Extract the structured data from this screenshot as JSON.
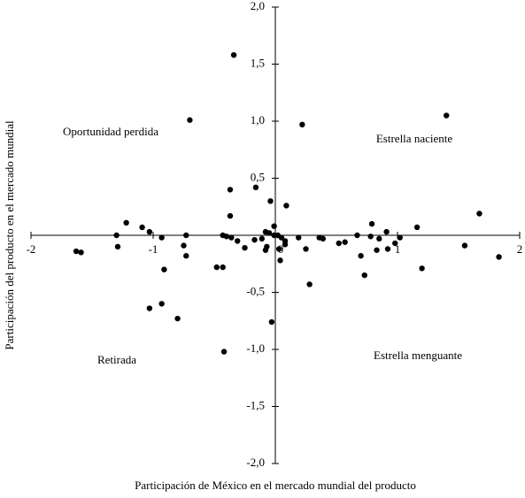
{
  "chart_data": {
    "type": "scatter",
    "x_label": "Participación de México en el mercado mundial del producto",
    "y_label": "Participación del producto en el mercado mundial",
    "annotations": [
      "Oportunidad perdida",
      "Estrella naciente",
      "Retirada",
      "Estrella menguante"
    ],
    "color": "#000000",
    "xlim": [
      -2,
      2
    ],
    "ylim": [
      -2,
      2
    ],
    "xticks": [
      -2,
      -1,
      0,
      1,
      2
    ],
    "yticks": [
      {
        "value": -2,
        "label": "-2,0"
      },
      {
        "value": -1.5,
        "label": "-1,5"
      },
      {
        "value": -1,
        "label": "-1,0"
      },
      {
        "value": -0.5,
        "label": "-0,5"
      },
      {
        "value": 0.5,
        "label": "0,5"
      },
      {
        "value": 1,
        "label": "1,0"
      },
      {
        "value": 1.5,
        "label": "1,5"
      },
      {
        "value": 2,
        "label": "2,0"
      }
    ],
    "x": [
      -0.34,
      -0.7,
      0.22,
      1.4,
      -0.37,
      -0.16,
      -0.04,
      0.09,
      -0.37,
      1.67,
      -1.22,
      -1.09,
      -1.03,
      -1.3,
      -0.73,
      -1.29,
      -1.63,
      -1.59,
      -0.93,
      -0.75,
      -0.73,
      -0.91,
      -0.48,
      -0.43,
      -1.03,
      -0.93,
      -0.8,
      -0.42,
      -0.03,
      0.28,
      0.73,
      0.7,
      1.2,
      1.55,
      1.83,
      1.16,
      0.79,
      0.91,
      1.02,
      0.98,
      0.85,
      0.83,
      0.92,
      0.78,
      0.67,
      0.57,
      0.52,
      0.39,
      0.36,
      0.19,
      0.25,
      0.05,
      0.08,
      0.03,
      -0.01,
      -0.01,
      -0.05,
      -0.11,
      -0.17,
      -0.25,
      -0.31,
      -0.4,
      -0.43,
      -0.08,
      -0.07,
      0.04,
      0.02,
      0.08,
      -0.08,
      -0.36
    ],
    "values": [
      1.58,
      1.01,
      0.97,
      1.05,
      0.4,
      0.42,
      0.3,
      0.26,
      0.17,
      0.19,
      0.11,
      0.07,
      0.03,
      0.0,
      0.0,
      -0.1,
      -0.14,
      -0.15,
      -0.02,
      -0.09,
      -0.18,
      -0.3,
      -0.28,
      -0.28,
      -0.64,
      -0.6,
      -0.73,
      -1.02,
      -0.76,
      -0.43,
      -0.35,
      -0.18,
      -0.29,
      -0.09,
      -0.19,
      0.07,
      0.1,
      0.03,
      -0.02,
      -0.07,
      -0.03,
      -0.13,
      -0.12,
      -0.01,
      0.0,
      -0.06,
      -0.07,
      -0.03,
      -0.02,
      -0.02,
      -0.12,
      -0.02,
      -0.08,
      -0.12,
      0.0,
      0.08,
      0.02,
      -0.03,
      -0.04,
      -0.11,
      -0.05,
      -0.01,
      0.0,
      -0.13,
      -0.1,
      -0.22,
      0.0,
      -0.05,
      0.03,
      -0.02
    ]
  }
}
